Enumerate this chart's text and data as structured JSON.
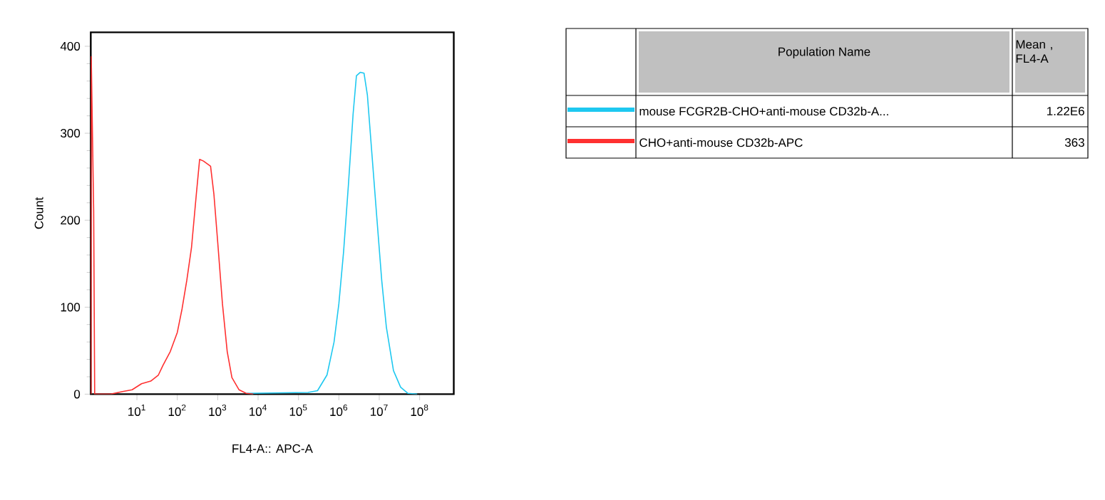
{
  "chart_data": {
    "type": "line",
    "xlabel": "FL4-A:: APC-A",
    "ylabel": "Count",
    "log": "x",
    "xlim": [
      0.72,
      700000000
    ],
    "ylim": [
      0,
      416
    ],
    "xticks": [
      {
        "value": 10,
        "label": "10$^{1}$"
      },
      {
        "value": 100,
        "label": "10$^{2}$"
      },
      {
        "value": 1000,
        "label": "10$^{3}$"
      },
      {
        "value": 10000,
        "label": "10$^{4}$"
      },
      {
        "value": 100000,
        "label": "10$^{5}$"
      },
      {
        "value": 1000000,
        "label": "10$^{6}$"
      },
      {
        "value": 10000000,
        "label": "10$^{7}$"
      },
      {
        "value": 100000000,
        "label": "10$^{8}$"
      }
    ],
    "yticks": [
      0,
      100,
      200,
      300,
      400
    ],
    "legend": "right",
    "marker": "none",
    "line_style": "solid",
    "annotations": [
      "Population Name",
      "Mean , FL4-A",
      "1.22E6",
      "363"
    ],
    "series": [
      {
        "name": "mouse FCGR2B-CHO+anti-mouse CD32b-A...",
        "color": "#1ec8f0",
        "x": [
          5080,
          172000,
          296000,
          508000,
          760000,
          1000000,
          1310000,
          1720000,
          2250000,
          2720000,
          3380000,
          4200000,
          5080000,
          6660000,
          8740000,
          11500000,
          15000000,
          22500000,
          33800000,
          50800000,
          87000000
        ],
        "values": [
          1,
          2,
          4,
          22,
          60,
          104,
          164,
          240,
          322,
          366,
          370,
          369,
          344,
          273,
          202,
          131,
          77,
          27,
          8,
          1,
          0
        ]
      },
      {
        "name": "CHO+anti-mouse CD32b-APC",
        "color": "#ff3030",
        "x": [
          0.73,
          0.74,
          0.85,
          0.9,
          2.25,
          4.4,
          7.6,
          13,
          22,
          34,
          44,
          67,
          100,
          131,
          172,
          225,
          296,
          357,
          444,
          666,
          805,
          1000,
          1310,
          1720,
          2250,
          3380,
          5080,
          7620
        ],
        "values": [
          0,
          388,
          210,
          0,
          0,
          3,
          5,
          12,
          15,
          22,
          33,
          49,
          71,
          98,
          131,
          169,
          230,
          270,
          268,
          262,
          230,
          175,
          104,
          49,
          19,
          5,
          1,
          0
        ]
      }
    ]
  }
}
